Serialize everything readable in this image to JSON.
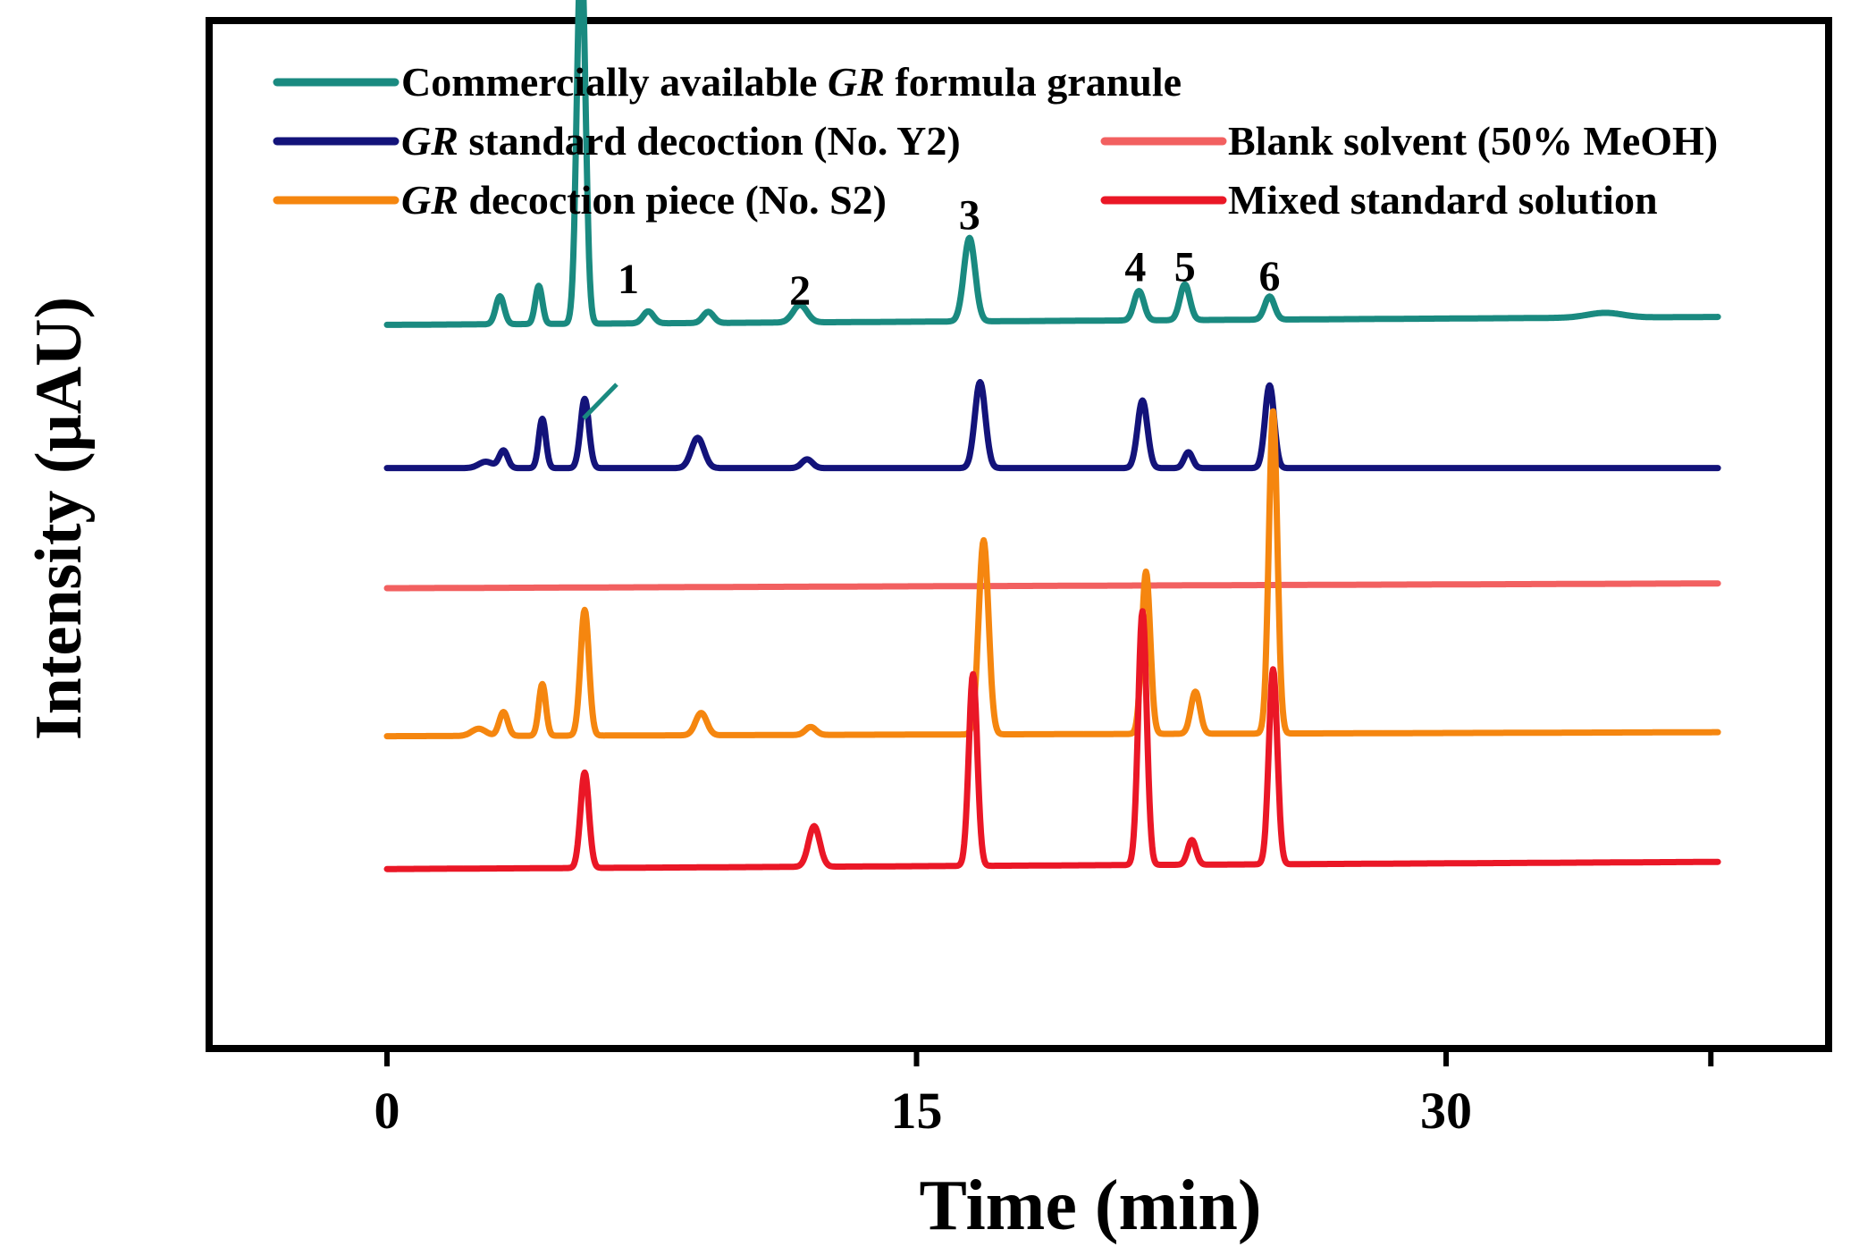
{
  "chart_data": {
    "type": "line",
    "xlabel": "Time (min)",
    "ylabel": "Intensity (μAU)",
    "xlim": [
      -5,
      41
    ],
    "ylim": [
      0,
      100
    ],
    "x_ticks": [
      0,
      15,
      30
    ],
    "x_tick_labels": [
      "0",
      "15",
      "30"
    ],
    "series": [
      {
        "key": "granule",
        "name_prefix": "Commercially available ",
        "name_italic": "GR",
        "name_suffix": " formula granule",
        "color": "#1a8a80",
        "baseline": 89.5,
        "end_baseline": 90.5,
        "peaks": [
          [
            3.2,
            3.5,
            0.12
          ],
          [
            4.3,
            4.8,
            0.1
          ],
          [
            5.5,
            48.0,
            0.12
          ],
          [
            7.4,
            1.5,
            0.15
          ],
          [
            9.1,
            1.4,
            0.15
          ],
          [
            11.7,
            2.2,
            0.2
          ],
          [
            16.5,
            10.5,
            0.16
          ],
          [
            21.3,
            3.7,
            0.14
          ],
          [
            22.6,
            4.5,
            0.14
          ],
          [
            25.0,
            2.9,
            0.14
          ],
          [
            34.5,
            0.6,
            0.5
          ]
        ]
      },
      {
        "key": "standard",
        "name_prefix": "",
        "name_italic": "GR",
        "name_suffix": " standard decoction (No. Y2)",
        "color": "#13137a",
        "baseline": 71.5,
        "end_baseline": 71.5,
        "peaks": [
          [
            2.8,
            0.8,
            0.2
          ],
          [
            3.3,
            2.2,
            0.12
          ],
          [
            4.4,
            6.2,
            0.1
          ],
          [
            5.6,
            8.7,
            0.12
          ],
          [
            8.8,
            3.8,
            0.18
          ],
          [
            11.9,
            1.1,
            0.15
          ],
          [
            16.8,
            10.8,
            0.15
          ],
          [
            21.4,
            8.5,
            0.14
          ],
          [
            22.7,
            2.0,
            0.12
          ],
          [
            25.0,
            10.4,
            0.13
          ]
        ]
      },
      {
        "key": "blank",
        "name_prefix": "Blank solvent (50% MeOH)",
        "name_italic": "",
        "name_suffix": "",
        "color": "#f26060",
        "baseline": 56.4,
        "end_baseline": 57.0,
        "peaks": []
      },
      {
        "key": "piece",
        "name_prefix": "",
        "name_italic": "GR",
        "name_suffix": " decoction piece (No. S2)",
        "color": "#f5860f",
        "baseline": 37.8,
        "end_baseline": 38.3,
        "peaks": [
          [
            2.6,
            0.9,
            0.2
          ],
          [
            3.3,
            3.0,
            0.12
          ],
          [
            4.4,
            6.5,
            0.1
          ],
          [
            5.6,
            15.8,
            0.12
          ],
          [
            8.9,
            2.8,
            0.16
          ],
          [
            12.0,
            1.0,
            0.15
          ],
          [
            16.9,
            24.4,
            0.14
          ],
          [
            21.5,
            20.4,
            0.12
          ],
          [
            22.9,
            5.3,
            0.13
          ],
          [
            25.1,
            40.5,
            0.12
          ]
        ]
      },
      {
        "key": "mixed",
        "name_prefix": "Mixed standard solution",
        "name_italic": "",
        "name_suffix": "",
        "color": "#ea1726",
        "baseline": 21.1,
        "end_baseline": 22.0,
        "peaks": [
          [
            5.6,
            12.0,
            0.12
          ],
          [
            12.1,
            5.1,
            0.16
          ],
          [
            16.6,
            24.1,
            0.12
          ],
          [
            21.4,
            31.9,
            0.12
          ],
          [
            22.8,
            3.1,
            0.12
          ],
          [
            25.1,
            24.5,
            0.12
          ]
        ]
      }
    ],
    "peak_labels": [
      {
        "text": "1",
        "x": 5.5,
        "y": 93.5
      },
      {
        "text": "2",
        "x": 11.7,
        "y": 92.0
      },
      {
        "text": "3",
        "x": 16.5,
        "y": 101.5
      },
      {
        "text": "4",
        "x": 21.2,
        "y": 95.0
      },
      {
        "text": "5",
        "x": 22.6,
        "y": 95.0
      },
      {
        "text": "6",
        "x": 25.0,
        "y": 93.8
      }
    ]
  }
}
